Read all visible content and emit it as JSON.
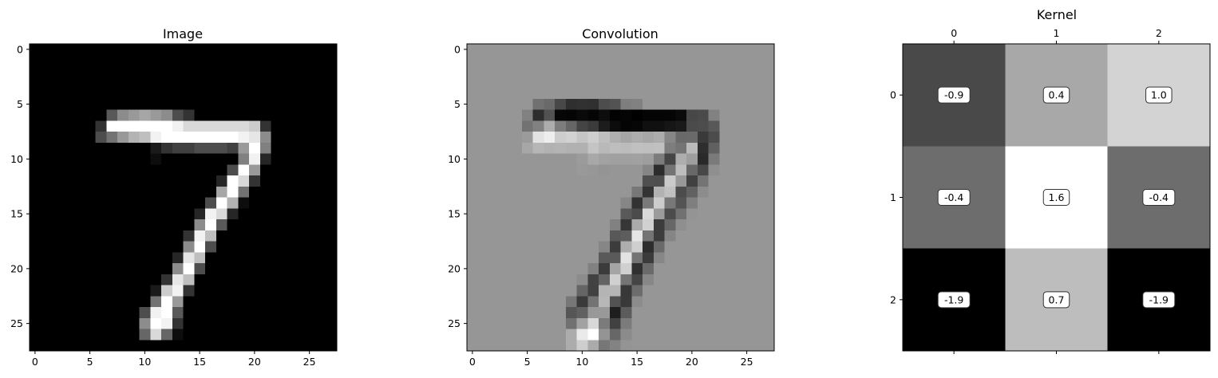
{
  "chart_data": [
    {
      "type": "heatmap",
      "title": "Image",
      "colormap": "gray",
      "shape": [
        28,
        28
      ],
      "xticks": [
        0,
        5,
        10,
        15,
        20,
        25
      ],
      "yticks": [
        0,
        5,
        10,
        15,
        20,
        25
      ],
      "nonzero_pixels": [
        [
          6,
          7,
          0.35
        ],
        [
          6,
          8,
          0.55
        ],
        [
          6,
          9,
          0.6
        ],
        [
          6,
          10,
          0.65
        ],
        [
          6,
          11,
          0.6
        ],
        [
          6,
          12,
          0.55
        ],
        [
          6,
          13,
          0.3
        ],
        [
          6,
          14,
          0.2
        ],
        [
          7,
          6,
          0.2
        ],
        [
          7,
          7,
          1.0
        ],
        [
          7,
          8,
          1.0
        ],
        [
          7,
          9,
          1.0
        ],
        [
          7,
          10,
          1.0
        ],
        [
          7,
          11,
          1.0
        ],
        [
          7,
          12,
          1.0
        ],
        [
          7,
          13,
          0.95
        ],
        [
          7,
          14,
          0.85
        ],
        [
          7,
          15,
          0.85
        ],
        [
          7,
          16,
          0.85
        ],
        [
          7,
          17,
          0.85
        ],
        [
          7,
          18,
          0.85
        ],
        [
          7,
          19,
          0.85
        ],
        [
          7,
          20,
          0.8
        ],
        [
          7,
          21,
          0.2
        ],
        [
          8,
          6,
          0.3
        ],
        [
          8,
          7,
          0.45
        ],
        [
          8,
          8,
          0.6
        ],
        [
          8,
          9,
          0.7
        ],
        [
          8,
          10,
          0.75
        ],
        [
          8,
          11,
          0.95
        ],
        [
          8,
          12,
          1.0
        ],
        [
          8,
          13,
          1.0
        ],
        [
          8,
          14,
          1.0
        ],
        [
          8,
          15,
          1.0
        ],
        [
          8,
          16,
          1.0
        ],
        [
          8,
          17,
          1.0
        ],
        [
          8,
          18,
          1.0
        ],
        [
          8,
          19,
          0.95
        ],
        [
          8,
          20,
          0.9
        ],
        [
          8,
          21,
          0.55
        ],
        [
          9,
          11,
          0.1
        ],
        [
          9,
          12,
          0.2
        ],
        [
          9,
          13,
          0.25
        ],
        [
          9,
          14,
          0.25
        ],
        [
          9,
          15,
          0.3
        ],
        [
          9,
          16,
          0.3
        ],
        [
          9,
          17,
          0.3
        ],
        [
          9,
          18,
          0.25
        ],
        [
          9,
          19,
          0.6
        ],
        [
          9,
          20,
          1.0
        ],
        [
          9,
          21,
          0.5
        ],
        [
          10,
          11,
          0.05
        ],
        [
          10,
          19,
          0.5
        ],
        [
          10,
          20,
          0.95
        ],
        [
          10,
          21,
          0.15
        ],
        [
          11,
          18,
          0.3
        ],
        [
          11,
          19,
          1.0
        ],
        [
          11,
          20,
          0.6
        ],
        [
          12,
          17,
          0.15
        ],
        [
          12,
          18,
          1.0
        ],
        [
          12,
          19,
          0.85
        ],
        [
          12,
          20,
          0.2
        ],
        [
          13,
          17,
          0.65
        ],
        [
          13,
          18,
          1.0
        ],
        [
          13,
          19,
          0.45
        ],
        [
          14,
          16,
          0.3
        ],
        [
          14,
          17,
          1.0
        ],
        [
          14,
          18,
          0.7
        ],
        [
          14,
          19,
          0.05
        ],
        [
          15,
          15,
          0.15
        ],
        [
          15,
          16,
          0.95
        ],
        [
          15,
          17,
          0.85
        ],
        [
          15,
          18,
          0.15
        ],
        [
          16,
          15,
          0.55
        ],
        [
          16,
          16,
          1.0
        ],
        [
          16,
          17,
          0.35
        ],
        [
          17,
          14,
          0.2
        ],
        [
          17,
          15,
          0.95
        ],
        [
          17,
          16,
          0.75
        ],
        [
          18,
          14,
          0.55
        ],
        [
          18,
          15,
          1.0
        ],
        [
          18,
          16,
          0.3
        ],
        [
          19,
          13,
          0.15
        ],
        [
          19,
          14,
          0.9
        ],
        [
          19,
          15,
          0.75
        ],
        [
          20,
          13,
          0.55
        ],
        [
          20,
          14,
          1.0
        ],
        [
          20,
          15,
          0.3
        ],
        [
          21,
          12,
          0.2
        ],
        [
          21,
          13,
          0.9
        ],
        [
          21,
          14,
          0.75
        ],
        [
          22,
          11,
          0.1
        ],
        [
          22,
          12,
          0.8
        ],
        [
          22,
          13,
          0.95
        ],
        [
          22,
          14,
          0.2
        ],
        [
          23,
          11,
          0.45
        ],
        [
          23,
          12,
          1.0
        ],
        [
          23,
          13,
          0.6
        ],
        [
          24,
          10,
          0.3
        ],
        [
          24,
          11,
          0.95
        ],
        [
          24,
          12,
          1.0
        ],
        [
          24,
          13,
          0.35
        ],
        [
          25,
          10,
          0.55
        ],
        [
          25,
          11,
          1.0
        ],
        [
          25,
          12,
          0.95
        ],
        [
          25,
          13,
          0.2
        ],
        [
          26,
          10,
          0.4
        ],
        [
          26,
          11,
          0.85
        ],
        [
          26,
          12,
          0.4
        ],
        [
          26,
          13,
          0.05
        ]
      ]
    },
    {
      "type": "heatmap",
      "title": "Convolution",
      "colormap": "gray",
      "shape": [
        28,
        28
      ],
      "xticks": [
        0,
        5,
        10,
        15,
        20,
        25
      ],
      "yticks": [
        0,
        5,
        10,
        15,
        20,
        25
      ],
      "background": 0.6,
      "note": "response of the Image panel to the 3x3 kernel shown in the Kernel panel"
    },
    {
      "type": "heatmap",
      "title": "Kernel",
      "colormap": "gray",
      "xticks": [
        0,
        1,
        2
      ],
      "yticks": [
        0,
        1,
        2
      ],
      "x_axis_position": "top",
      "values": [
        [
          -0.9,
          0.4,
          1.0
        ],
        [
          -0.4,
          1.6,
          -0.4
        ],
        [
          -1.9,
          0.7,
          -1.9
        ]
      ],
      "labels": [
        [
          "-0.9",
          "0.4",
          "1.0"
        ],
        [
          "-0.4",
          "1.6",
          "-0.4"
        ],
        [
          "-1.9",
          "0.7",
          "-1.9"
        ]
      ],
      "vmin": -1.9,
      "vmax": 1.6
    }
  ]
}
